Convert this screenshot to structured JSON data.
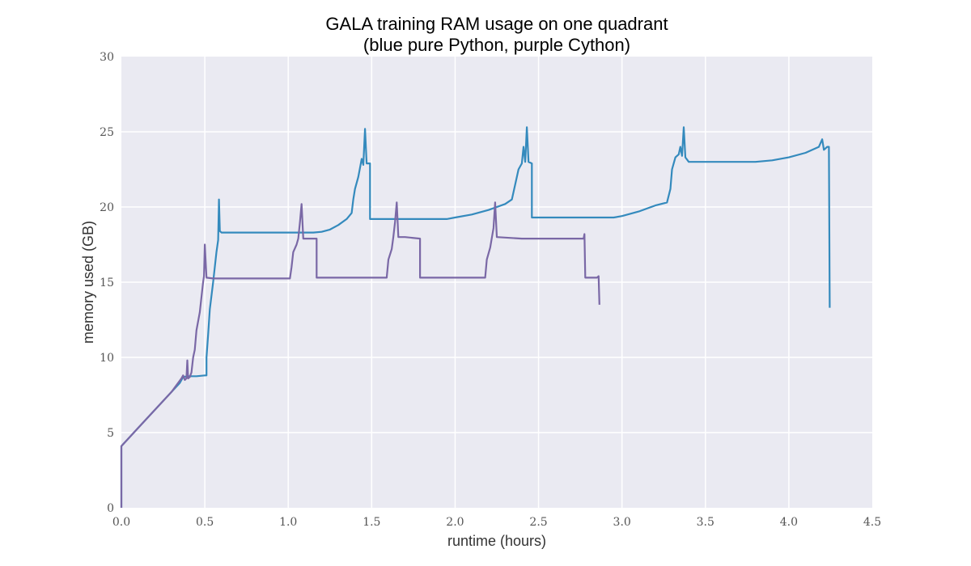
{
  "chart_data": {
    "type": "line",
    "title": "GALA training RAM usage on one quadrant",
    "subtitle": "(blue pure Python, purple Cython)",
    "xlabel": "runtime (hours)",
    "ylabel": "memory used (GB)",
    "xlim": [
      0,
      4.5
    ],
    "ylim": [
      0,
      30
    ],
    "x_ticks": [
      "0.0",
      "0.5",
      "1.0",
      "1.5",
      "2.0",
      "2.5",
      "3.0",
      "3.5",
      "4.0",
      "4.5"
    ],
    "y_ticks": [
      "0",
      "5",
      "10",
      "15",
      "20",
      "25",
      "30"
    ],
    "grid": true,
    "background_color": "#eaeaf2",
    "series": [
      {
        "color": "#348abd",
        "points": [
          [
            0.0,
            0.0
          ],
          [
            0.0,
            4.1
          ],
          [
            0.1,
            5.3
          ],
          [
            0.2,
            6.5
          ],
          [
            0.3,
            7.7
          ],
          [
            0.35,
            8.3
          ],
          [
            0.37,
            8.7
          ],
          [
            0.4,
            8.75
          ],
          [
            0.45,
            8.75
          ],
          [
            0.5,
            8.8
          ],
          [
            0.51,
            8.8
          ],
          [
            0.51,
            10.0
          ],
          [
            0.52,
            11.5
          ],
          [
            0.53,
            13.2
          ],
          [
            0.55,
            15.0
          ],
          [
            0.57,
            17.0
          ],
          [
            0.58,
            17.8
          ],
          [
            0.585,
            20.5
          ],
          [
            0.59,
            18.4
          ],
          [
            0.6,
            18.3
          ],
          [
            0.8,
            18.3
          ],
          [
            1.0,
            18.3
          ],
          [
            1.15,
            18.3
          ],
          [
            1.2,
            18.35
          ],
          [
            1.25,
            18.5
          ],
          [
            1.3,
            18.8
          ],
          [
            1.35,
            19.2
          ],
          [
            1.38,
            19.6
          ],
          [
            1.39,
            20.5
          ],
          [
            1.4,
            21.2
          ],
          [
            1.42,
            22.0
          ],
          [
            1.44,
            23.2
          ],
          [
            1.45,
            22.8
          ],
          [
            1.46,
            25.2
          ],
          [
            1.47,
            22.9
          ],
          [
            1.49,
            22.9
          ],
          [
            1.49,
            19.2
          ],
          [
            1.6,
            19.2
          ],
          [
            1.8,
            19.2
          ],
          [
            1.95,
            19.2
          ],
          [
            2.0,
            19.3
          ],
          [
            2.1,
            19.5
          ],
          [
            2.2,
            19.8
          ],
          [
            2.3,
            20.2
          ],
          [
            2.34,
            20.5
          ],
          [
            2.36,
            21.5
          ],
          [
            2.38,
            22.5
          ],
          [
            2.4,
            22.9
          ],
          [
            2.41,
            24.0
          ],
          [
            2.42,
            23.0
          ],
          [
            2.43,
            25.3
          ],
          [
            2.44,
            23.0
          ],
          [
            2.46,
            22.9
          ],
          [
            2.46,
            19.3
          ],
          [
            2.6,
            19.3
          ],
          [
            2.8,
            19.3
          ],
          [
            2.95,
            19.3
          ],
          [
            3.0,
            19.4
          ],
          [
            3.1,
            19.7
          ],
          [
            3.2,
            20.1
          ],
          [
            3.27,
            20.3
          ],
          [
            3.29,
            21.2
          ],
          [
            3.3,
            22.5
          ],
          [
            3.32,
            23.3
          ],
          [
            3.34,
            23.5
          ],
          [
            3.35,
            24.0
          ],
          [
            3.36,
            23.4
          ],
          [
            3.37,
            25.3
          ],
          [
            3.38,
            23.3
          ],
          [
            3.4,
            23.0
          ],
          [
            3.6,
            23.0
          ],
          [
            3.8,
            23.0
          ],
          [
            3.9,
            23.1
          ],
          [
            4.0,
            23.3
          ],
          [
            4.1,
            23.6
          ],
          [
            4.18,
            24.0
          ],
          [
            4.2,
            24.5
          ],
          [
            4.21,
            23.8
          ],
          [
            4.23,
            24.0
          ],
          [
            4.24,
            24.0
          ],
          [
            4.245,
            13.3
          ]
        ]
      },
      {
        "color": "#7a68a6",
        "points": [
          [
            0.0,
            0.0
          ],
          [
            0.0,
            4.1
          ],
          [
            0.1,
            5.3
          ],
          [
            0.2,
            6.5
          ],
          [
            0.3,
            7.7
          ],
          [
            0.36,
            8.6
          ],
          [
            0.37,
            8.8
          ],
          [
            0.38,
            8.5
          ],
          [
            0.39,
            8.6
          ],
          [
            0.395,
            9.8
          ],
          [
            0.4,
            8.6
          ],
          [
            0.41,
            8.7
          ],
          [
            0.42,
            9.0
          ],
          [
            0.43,
            10.0
          ],
          [
            0.44,
            10.5
          ],
          [
            0.45,
            11.8
          ],
          [
            0.47,
            13.0
          ],
          [
            0.49,
            15.0
          ],
          [
            0.495,
            15.4
          ],
          [
            0.5,
            17.5
          ],
          [
            0.51,
            15.3
          ],
          [
            0.55,
            15.25
          ],
          [
            0.8,
            15.25
          ],
          [
            1.01,
            15.25
          ],
          [
            1.02,
            16.0
          ],
          [
            1.03,
            17.0
          ],
          [
            1.05,
            17.5
          ],
          [
            1.06,
            17.9
          ],
          [
            1.07,
            19.0
          ],
          [
            1.08,
            20.2
          ],
          [
            1.09,
            17.9
          ],
          [
            1.1,
            17.9
          ],
          [
            1.17,
            17.9
          ],
          [
            1.17,
            15.3
          ],
          [
            1.3,
            15.3
          ],
          [
            1.5,
            15.3
          ],
          [
            1.59,
            15.3
          ],
          [
            1.6,
            16.5
          ],
          [
            1.62,
            17.2
          ],
          [
            1.63,
            18.0
          ],
          [
            1.64,
            19.0
          ],
          [
            1.65,
            20.3
          ],
          [
            1.66,
            18.0
          ],
          [
            1.7,
            18.0
          ],
          [
            1.79,
            17.9
          ],
          [
            1.79,
            15.3
          ],
          [
            2.0,
            15.3
          ],
          [
            2.18,
            15.3
          ],
          [
            2.19,
            16.5
          ],
          [
            2.21,
            17.3
          ],
          [
            2.23,
            18.6
          ],
          [
            2.24,
            20.3
          ],
          [
            2.25,
            18.0
          ],
          [
            2.4,
            17.9
          ],
          [
            2.6,
            17.9
          ],
          [
            2.77,
            17.9
          ],
          [
            2.775,
            18.2
          ],
          [
            2.78,
            15.3
          ],
          [
            2.85,
            15.3
          ],
          [
            2.86,
            15.4
          ],
          [
            2.865,
            13.5
          ]
        ]
      }
    ]
  }
}
